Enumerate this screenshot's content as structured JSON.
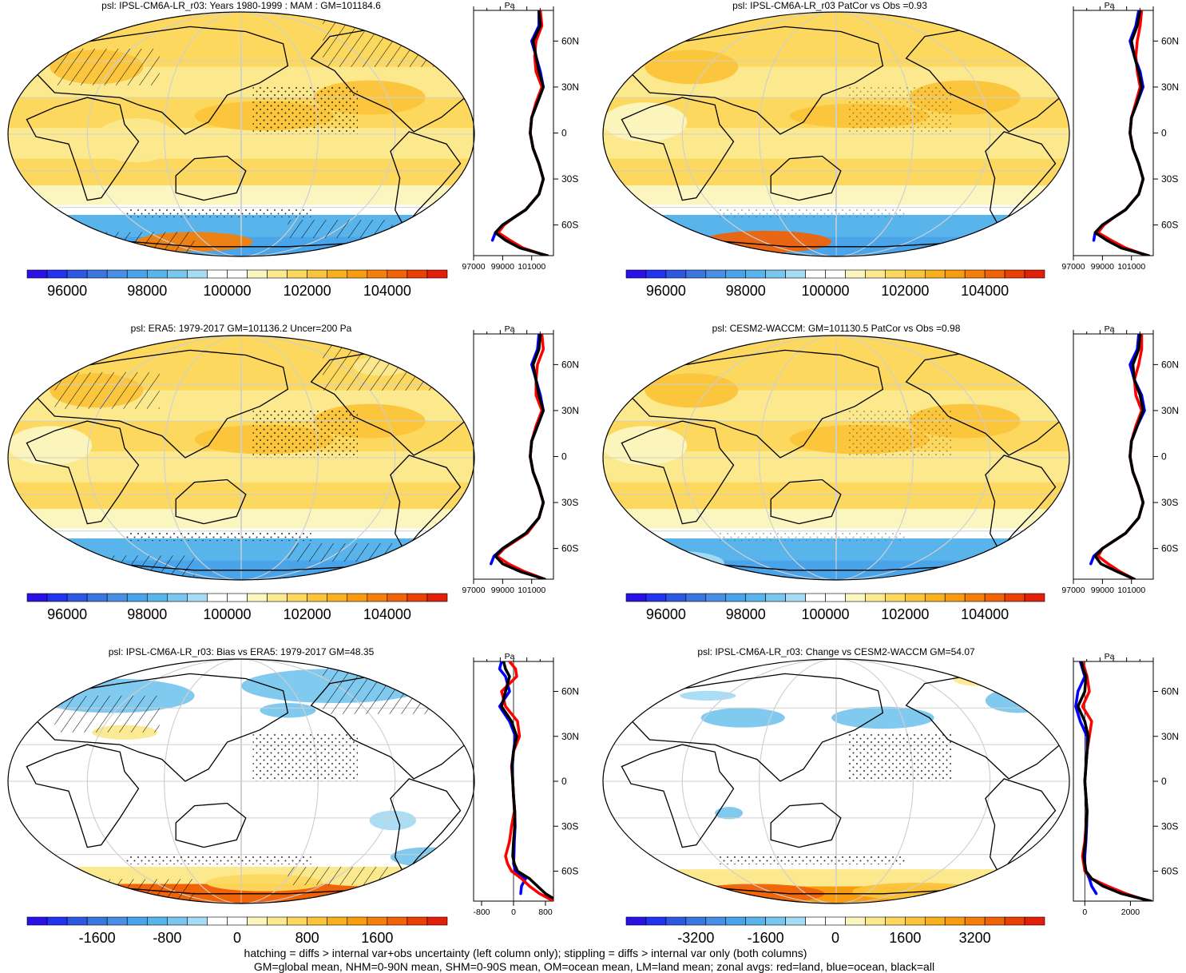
{
  "footer": {
    "line1": "hatching = diffs > internal var+obs uncertainty (left column only); stippling = diffs > internal var only (both columns)",
    "line2": "GM=global mean, NHM=0-90N mean, SHM=0-90S mean, OM=ocean mean, LM=land mean; zonal avgs: red=land, blue=ocean, black=all"
  },
  "colors": {
    "land": "#ff0000",
    "ocean": "#0000ff",
    "all": "#000000"
  },
  "chart_data": [
    {
      "type": "heatmap",
      "title": "psl: IPSL-CM6A-LR_r03: Years 1980-1999 : MAM : GM=101184.6",
      "variable": "psl",
      "colorbar_ticks": [
        "96000",
        "98000",
        "100000",
        "102000",
        "104000"
      ],
      "colorbar_range": [
        95000,
        105500
      ],
      "colormap": "diverging",
      "zonal_avg": {
        "unit_label": "Pa",
        "lat_ticks": [
          "60N",
          "30N",
          "0",
          "30S",
          "60S"
        ],
        "x_ticks": [
          "97000",
          "99000",
          "101000"
        ],
        "xlim": [
          97000,
          102500
        ],
        "lat": [
          80,
          70,
          60,
          50,
          40,
          30,
          20,
          10,
          0,
          -10,
          -20,
          -30,
          -40,
          -50,
          -55,
          -60,
          -65,
          -70,
          -75,
          -80
        ],
        "land": [
          101600,
          101700,
          101300,
          101200,
          101300,
          101700,
          101300,
          101000,
          100900,
          101100,
          101500,
          101800,
          101500,
          100600,
          99800,
          99100,
          98700,
          99500,
          100400,
          102000
        ],
        "ocean": [
          101500,
          101500,
          101000,
          101300,
          101600,
          101800,
          101400,
          101000,
          100900,
          101100,
          101500,
          101800,
          101500,
          100600,
          99800,
          99000,
          98500,
          98300,
          null,
          null
        ],
        "all": [
          101500,
          101600,
          101100,
          101300,
          101500,
          101800,
          101400,
          101000,
          100900,
          101100,
          101500,
          101800,
          101500,
          100600,
          99800,
          99000,
          98500,
          99200,
          100200,
          102100
        ]
      }
    },
    {
      "type": "heatmap",
      "title": "psl: IPSL-CM6A-LR_r03 PatCor vs Obs =0.93",
      "variable": "psl",
      "colorbar_ticks": [
        "96000",
        "98000",
        "100000",
        "102000",
        "104000"
      ],
      "colorbar_range": [
        95000,
        105500
      ],
      "colormap": "diverging",
      "zonal_avg": {
        "unit_label": "Pa",
        "lat_ticks": [
          "60N",
          "30N",
          "0",
          "30S",
          "60S"
        ],
        "x_ticks": [
          "97000",
          "99000",
          "101000"
        ],
        "xlim": [
          97000,
          102500
        ],
        "lat": [
          80,
          70,
          60,
          50,
          40,
          30,
          20,
          10,
          0,
          -10,
          -20,
          -30,
          -40,
          -50,
          -55,
          -60,
          -65,
          -70,
          -75,
          -80
        ],
        "land": [
          101700,
          101600,
          101400,
          101300,
          101400,
          101600,
          101300,
          101000,
          100900,
          101100,
          101500,
          101800,
          101500,
          100600,
          99800,
          99100,
          98700,
          99600,
          100600,
          102100
        ],
        "ocean": [
          101500,
          101300,
          100900,
          101200,
          101600,
          101800,
          101400,
          101000,
          100900,
          101100,
          101500,
          101800,
          101500,
          100600,
          99800,
          99000,
          98500,
          98400,
          null,
          null
        ],
        "all": [
          101600,
          101400,
          101000,
          101200,
          101500,
          101700,
          101400,
          101000,
          100900,
          101100,
          101500,
          101800,
          101500,
          100600,
          99800,
          99000,
          98500,
          99300,
          100300,
          102200
        ]
      }
    },
    {
      "type": "heatmap",
      "title": "psl: ERA5: 1979-2017 GM=101136.2 Uncer=200 Pa",
      "variable": "psl",
      "colorbar_ticks": [
        "96000",
        "98000",
        "100000",
        "102000",
        "104000"
      ],
      "colorbar_range": [
        95000,
        105500
      ],
      "colormap": "diverging",
      "zonal_avg": {
        "unit_label": "Pa",
        "lat_ticks": [
          "60N",
          "30N",
          "0",
          "30S",
          "60S"
        ],
        "x_ticks": [
          "97000",
          "99000",
          "101000"
        ],
        "xlim": [
          97000,
          102500
        ],
        "lat": [
          80,
          70,
          60,
          50,
          40,
          30,
          20,
          10,
          0,
          -10,
          -20,
          -30,
          -40,
          -50,
          -55,
          -60,
          -65,
          -70,
          -75,
          -80
        ],
        "land": [
          101700,
          101800,
          101400,
          101300,
          101300,
          101700,
          101300,
          101000,
          100900,
          101100,
          101500,
          101800,
          101500,
          100700,
          99900,
          99100,
          98600,
          99400,
          100500,
          101900
        ],
        "ocean": [
          101500,
          101400,
          101000,
          101300,
          101600,
          101800,
          101400,
          101000,
          100900,
          101100,
          101500,
          101800,
          101500,
          100600,
          99800,
          99000,
          98400,
          98200,
          null,
          null
        ],
        "all": [
          101600,
          101500,
          101100,
          101300,
          101500,
          101800,
          101400,
          101000,
          100900,
          101100,
          101500,
          101800,
          101500,
          100600,
          99800,
          99000,
          98500,
          99000,
          100200,
          101900
        ]
      }
    },
    {
      "type": "heatmap",
      "title": "psl: CESM2-WACCM: GM=101130.5 PatCor vs Obs =0.98",
      "variable": "psl",
      "colorbar_ticks": [
        "96000",
        "98000",
        "100000",
        "102000",
        "104000"
      ],
      "colorbar_range": [
        95000,
        105500
      ],
      "colormap": "diverging",
      "zonal_avg": {
        "unit_label": "Pa",
        "lat_ticks": [
          "60N",
          "30N",
          "0",
          "30S",
          "60S"
        ],
        "x_ticks": [
          "97000",
          "99000",
          "101000"
        ],
        "xlim": [
          97000,
          102500
        ],
        "lat": [
          80,
          70,
          60,
          50,
          40,
          30,
          20,
          10,
          0,
          -10,
          -20,
          -30,
          -40,
          -50,
          -55,
          -60,
          -65,
          -70,
          -75,
          -80
        ],
        "land": [
          101700,
          101700,
          101500,
          101200,
          101300,
          101700,
          101300,
          101000,
          100900,
          101100,
          101500,
          101800,
          101500,
          100600,
          99800,
          99000,
          98700,
          99400,
          100200,
          101200
        ],
        "ocean": [
          101500,
          101400,
          100900,
          101200,
          101700,
          101900,
          101400,
          101000,
          100900,
          101100,
          101500,
          101800,
          101500,
          100600,
          99800,
          99000,
          98400,
          98200,
          null,
          null
        ],
        "all": [
          101600,
          101500,
          101100,
          101200,
          101600,
          101800,
          101400,
          101000,
          100900,
          101100,
          101500,
          101800,
          101500,
          100600,
          99800,
          99000,
          98500,
          98900,
          100000,
          101200
        ]
      }
    },
    {
      "type": "heatmap",
      "title": "psl: IPSL-CM6A-LR_r03: Bias vs ERA5: 1979-2017 GM=48.35",
      "variable": "psl",
      "colorbar_ticks": [
        "-1600",
        "-800",
        "0",
        "800",
        "1600"
      ],
      "colorbar_range": [
        -2400,
        2400
      ],
      "colormap": "diverging",
      "zonal_avg": {
        "unit_label": "Pa",
        "lat_ticks": [
          "60N",
          "30N",
          "0",
          "30S",
          "60S"
        ],
        "x_ticks": [
          "-800",
          "0",
          "800"
        ],
        "xlim": [
          -1000,
          1000
        ],
        "lat": [
          80,
          75,
          70,
          60,
          50,
          40,
          30,
          20,
          10,
          0,
          -10,
          -20,
          -30,
          -40,
          -50,
          -55,
          -60,
          -65,
          -70,
          -75,
          -80
        ],
        "land": [
          -100,
          50,
          80,
          -300,
          -200,
          100,
          150,
          0,
          -50,
          -20,
          0,
          20,
          -50,
          -100,
          -200,
          -150,
          -50,
          200,
          400,
          650,
          1000
        ],
        "ocean": [
          -300,
          -350,
          -200,
          -100,
          -350,
          -100,
          50,
          0,
          -30,
          -20,
          0,
          30,
          40,
          20,
          10,
          0,
          50,
          300,
          200,
          180,
          null
        ],
        "all": [
          -250,
          -200,
          -100,
          -200,
          -300,
          -50,
          80,
          0,
          -40,
          -20,
          0,
          30,
          30,
          0,
          -20,
          20,
          100,
          400,
          600,
          800,
          1100
        ]
      }
    },
    {
      "type": "heatmap",
      "title": "psl: IPSL-CM6A-LR_r03: Change vs CESM2-WACCM GM=54.07",
      "variable": "psl",
      "colorbar_ticks": [
        "-3200",
        "-1600",
        "0",
        "1600",
        "3200"
      ],
      "colorbar_range": [
        -4800,
        4800
      ],
      "colormap": "diverging",
      "zonal_avg": {
        "unit_label": "Pa",
        "lat_ticks": [
          "60N",
          "30N",
          "0",
          "30S",
          "60S"
        ],
        "x_ticks": [
          "0",
          "2000"
        ],
        "xlim": [
          -500,
          3000
        ],
        "lat": [
          80,
          75,
          70,
          60,
          50,
          40,
          30,
          20,
          10,
          0,
          -10,
          -20,
          -30,
          -40,
          -50,
          -55,
          -60,
          -65,
          -70,
          -75,
          -80
        ],
        "land": [
          -100,
          0,
          100,
          200,
          -100,
          300,
          200,
          100,
          50,
          0,
          50,
          100,
          50,
          0,
          -100,
          -50,
          0,
          300,
          1000,
          1800,
          2800
        ],
        "ocean": [
          -200,
          -100,
          0,
          -300,
          -400,
          -200,
          100,
          100,
          50,
          0,
          50,
          100,
          80,
          50,
          0,
          0,
          50,
          200,
          300,
          500,
          null
        ],
        "all": [
          -150,
          -80,
          50,
          0,
          -300,
          0,
          150,
          100,
          50,
          0,
          50,
          100,
          60,
          30,
          -50,
          0,
          50,
          300,
          800,
          1600,
          2900
        ]
      }
    }
  ]
}
